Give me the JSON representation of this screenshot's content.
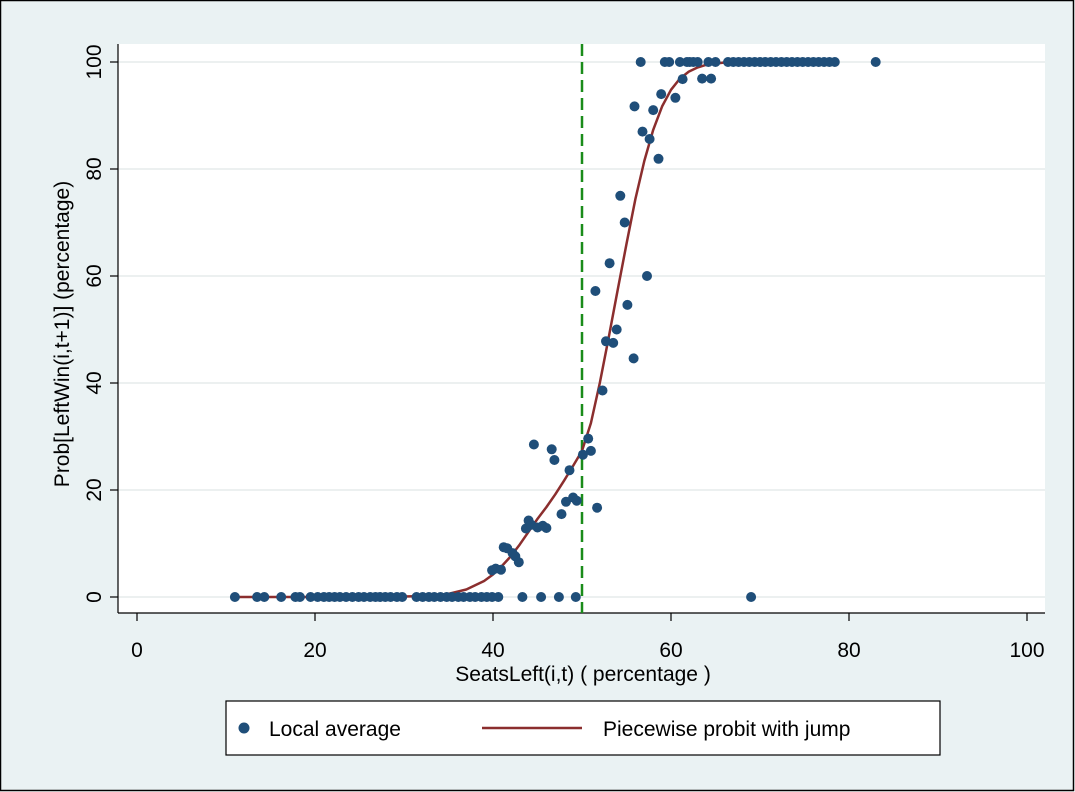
{
  "chart_data": {
    "type": "scatter",
    "xlabel": "SeatsLeft(i,t) ( percentage )",
    "ylabel": "Prob[LeftWin(i,t+1)] (percentage)",
    "xlim": [
      0,
      100
    ],
    "ylim": [
      0,
      100
    ],
    "x_ticks": [
      0,
      20,
      40,
      60,
      80,
      100
    ],
    "y_ticks": [
      0,
      20,
      40,
      60,
      80,
      100
    ],
    "grid": "horizontal",
    "legend_position": "bottom",
    "threshold_line": {
      "x": 50,
      "style": "dashed",
      "color": "#1a8c1a"
    },
    "series": [
      {
        "name": "Local average",
        "kind": "scatter",
        "color": "#1f4e79",
        "points": [
          [
            11,
            0
          ],
          [
            13.5,
            0
          ],
          [
            14.3,
            0
          ],
          [
            16.2,
            0
          ],
          [
            17.8,
            0
          ],
          [
            18.3,
            0
          ],
          [
            19.5,
            0
          ],
          [
            20.3,
            0
          ],
          [
            21,
            0
          ],
          [
            21.6,
            0
          ],
          [
            22.2,
            0
          ],
          [
            22.8,
            0
          ],
          [
            23.5,
            0
          ],
          [
            24.2,
            0
          ],
          [
            24.9,
            0
          ],
          [
            25.5,
            0
          ],
          [
            26.2,
            0
          ],
          [
            26.8,
            0
          ],
          [
            27.3,
            0
          ],
          [
            27.9,
            0
          ],
          [
            28.5,
            0
          ],
          [
            29.2,
            0
          ],
          [
            29.8,
            0
          ],
          [
            31.4,
            0
          ],
          [
            32.1,
            0
          ],
          [
            32.8,
            0
          ],
          [
            33.4,
            0
          ],
          [
            34.1,
            0
          ],
          [
            34.8,
            0
          ],
          [
            35.4,
            0
          ],
          [
            36.1,
            0
          ],
          [
            36.7,
            0
          ],
          [
            37.4,
            0
          ],
          [
            38,
            0
          ],
          [
            38.7,
            0
          ],
          [
            39.3,
            0
          ],
          [
            39.9,
            0
          ],
          [
            40.6,
            0
          ],
          [
            43.3,
            0
          ],
          [
            45.4,
            0
          ],
          [
            47.4,
            0
          ],
          [
            49.3,
            0
          ],
          [
            69,
            0
          ],
          [
            39.9,
            5
          ],
          [
            40.3,
            5.3
          ],
          [
            40.9,
            5.1
          ],
          [
            41.2,
            9.3
          ],
          [
            41.6,
            9.1
          ],
          [
            42.2,
            8.2
          ],
          [
            42.5,
            7.6
          ],
          [
            42.9,
            6.5
          ],
          [
            43.7,
            12.8
          ],
          [
            44,
            14.3
          ],
          [
            44.3,
            13.5
          ],
          [
            44.6,
            28.5
          ],
          [
            45,
            13
          ],
          [
            45.6,
            13.3
          ],
          [
            46,
            12.9
          ],
          [
            46.6,
            27.6
          ],
          [
            46.9,
            25.6
          ],
          [
            47.7,
            15.5
          ],
          [
            48.2,
            17.8
          ],
          [
            48.6,
            23.7
          ],
          [
            49,
            18.6
          ],
          [
            49.4,
            18
          ],
          [
            50.1,
            26.6
          ],
          [
            50.7,
            29.6
          ],
          [
            51,
            27.3
          ],
          [
            51.5,
            57.2
          ],
          [
            51.7,
            16.7
          ],
          [
            52.3,
            38.6
          ],
          [
            52.7,
            47.8
          ],
          [
            53.1,
            62.4
          ],
          [
            53.5,
            47.5
          ],
          [
            53.9,
            50
          ],
          [
            54.3,
            75
          ],
          [
            54.8,
            70
          ],
          [
            55.1,
            54.6
          ],
          [
            55.8,
            44.6
          ],
          [
            55.9,
            91.7
          ],
          [
            56.6,
            100
          ],
          [
            56.8,
            87
          ],
          [
            57.3,
            60
          ],
          [
            57.6,
            85.6
          ],
          [
            58,
            91
          ],
          [
            58.6,
            81.9
          ],
          [
            58.9,
            94
          ],
          [
            59.3,
            100
          ],
          [
            59.8,
            100
          ],
          [
            60.5,
            93.3
          ],
          [
            61,
            100
          ],
          [
            61.3,
            96.8
          ],
          [
            61.8,
            100
          ],
          [
            62.1,
            100
          ],
          [
            62.5,
            100
          ],
          [
            63,
            100
          ],
          [
            63.5,
            96.9
          ],
          [
            64.2,
            100
          ],
          [
            64.5,
            96.9
          ],
          [
            65,
            100
          ],
          [
            66.4,
            100
          ],
          [
            67,
            100
          ],
          [
            67.6,
            100
          ],
          [
            68.2,
            100
          ],
          [
            68.8,
            100
          ],
          [
            69.4,
            100
          ],
          [
            70,
            100
          ],
          [
            70.6,
            100
          ],
          [
            71.2,
            100
          ],
          [
            71.8,
            100
          ],
          [
            72.4,
            100
          ],
          [
            73,
            100
          ],
          [
            73.6,
            100
          ],
          [
            74.2,
            100
          ],
          [
            74.8,
            100
          ],
          [
            75.4,
            100
          ],
          [
            76,
            100
          ],
          [
            76.6,
            100
          ],
          [
            77.2,
            100
          ],
          [
            77.8,
            100
          ],
          [
            78.4,
            100
          ],
          [
            83,
            100
          ]
        ]
      },
      {
        "name": "Piecewise probit with jump",
        "kind": "line",
        "color": "#8b2e2e",
        "points": [
          [
            11,
            0
          ],
          [
            20,
            0
          ],
          [
            30,
            0.1
          ],
          [
            33,
            0.2
          ],
          [
            35,
            0.6
          ],
          [
            37,
            1.4
          ],
          [
            39,
            3
          ],
          [
            40,
            4.2
          ],
          [
            41,
            5.8
          ],
          [
            42,
            7.6
          ],
          [
            43,
            9.8
          ],
          [
            44,
            12.2
          ],
          [
            45,
            14.6
          ],
          [
            46,
            16.8
          ],
          [
            47,
            19.2
          ],
          [
            48,
            21.8
          ],
          [
            49,
            24.5
          ],
          [
            50,
            27.3
          ],
          [
            51,
            32.5
          ],
          [
            52,
            40
          ],
          [
            53,
            48.5
          ],
          [
            54,
            57.3
          ],
          [
            55,
            66
          ],
          [
            56,
            74.4
          ],
          [
            57,
            81.5
          ],
          [
            58,
            87.3
          ],
          [
            59,
            91.7
          ],
          [
            60,
            94.8
          ],
          [
            61,
            96.9
          ],
          [
            62,
            98.2
          ],
          [
            63,
            99
          ],
          [
            64,
            99.5
          ],
          [
            66,
            99.9
          ],
          [
            70,
            100
          ],
          [
            78,
            100
          ]
        ]
      }
    ]
  },
  "legend": {
    "items": [
      {
        "label": "Local average",
        "marker": "dot"
      },
      {
        "label": "Piecewise probit with jump",
        "marker": "line"
      }
    ]
  }
}
